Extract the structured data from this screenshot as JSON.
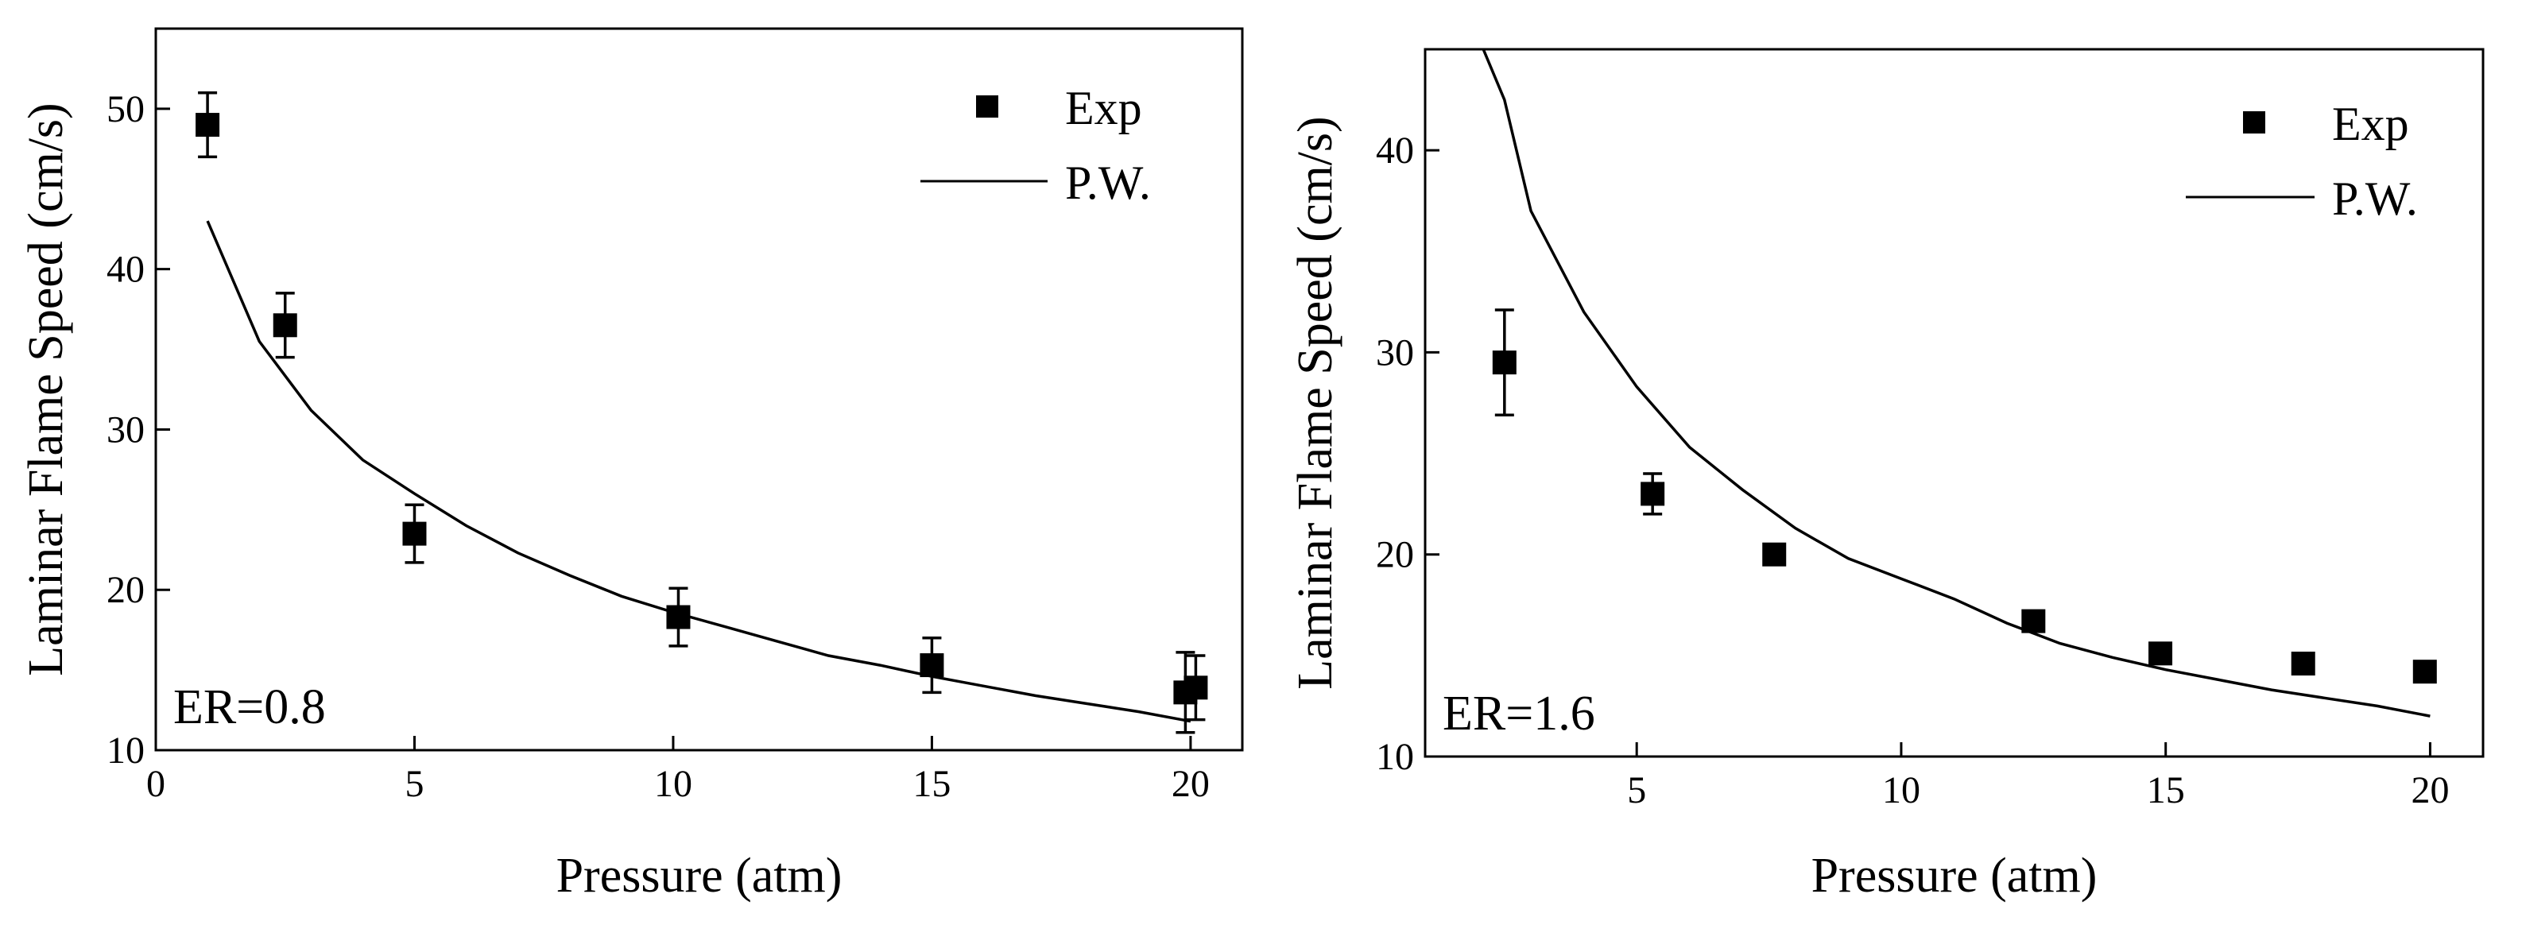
{
  "chart_data": [
    {
      "type": "scatter",
      "panel_label": "ER=0.8",
      "xlabel": "Pressure (atm)",
      "ylabel": "Laminar Flame Speed (cm/s)",
      "xlim": [
        0,
        21
      ],
      "ylim": [
        10,
        55
      ],
      "xticks": [
        0,
        5,
        10,
        15,
        20
      ],
      "yticks": [
        10,
        20,
        30,
        40,
        50
      ],
      "legend": {
        "position": "top-right",
        "entries": [
          "Exp",
          "P.W."
        ]
      },
      "series": [
        {
          "name": "Exp",
          "kind": "markers",
          "points": [
            {
              "x": 1,
              "y": 49.0,
              "err": 2.0
            },
            {
              "x": 2.5,
              "y": 36.5,
              "err": 2.0
            },
            {
              "x": 5,
              "y": 23.5,
              "err": 1.8
            },
            {
              "x": 10.1,
              "y": 18.3,
              "err": 1.8
            },
            {
              "x": 15,
              "y": 15.3,
              "err": 1.7
            },
            {
              "x": 19.9,
              "y": 13.6,
              "err": 2.5
            },
            {
              "x": 20.1,
              "y": 13.9,
              "err": 2.0
            }
          ]
        },
        {
          "name": "P.W.",
          "kind": "line",
          "points": [
            {
              "x": 1,
              "y": 43.0
            },
            {
              "x": 2,
              "y": 35.5
            },
            {
              "x": 3,
              "y": 31.2
            },
            {
              "x": 4,
              "y": 28.1
            },
            {
              "x": 5,
              "y": 26.0
            },
            {
              "x": 6,
              "y": 24.0
            },
            {
              "x": 7,
              "y": 22.3
            },
            {
              "x": 8,
              "y": 20.9
            },
            {
              "x": 9,
              "y": 19.6
            },
            {
              "x": 10,
              "y": 18.6
            },
            {
              "x": 11,
              "y": 17.7
            },
            {
              "x": 12,
              "y": 16.8
            },
            {
              "x": 13,
              "y": 15.9
            },
            {
              "x": 14,
              "y": 15.3
            },
            {
              "x": 15,
              "y": 14.6
            },
            {
              "x": 16,
              "y": 14.0
            },
            {
              "x": 17,
              "y": 13.4
            },
            {
              "x": 18,
              "y": 12.9
            },
            {
              "x": 19,
              "y": 12.4
            },
            {
              "x": 20,
              "y": 11.8
            }
          ]
        }
      ]
    },
    {
      "type": "scatter",
      "panel_label": "ER=1.6",
      "xlabel": "Pressure (atm)",
      "ylabel": "Laminar Flame Speed (cm/s)",
      "xlim": [
        1,
        21
      ],
      "ylim": [
        10,
        45
      ],
      "xticks": [
        5,
        10,
        15,
        20
      ],
      "yticks": [
        10,
        20,
        30,
        40
      ],
      "legend": {
        "position": "top-right",
        "entries": [
          "Exp",
          "P.W."
        ]
      },
      "series": [
        {
          "name": "Exp",
          "kind": "markers",
          "points": [
            {
              "x": 2.5,
              "y": 29.5,
              "err": 2.6
            },
            {
              "x": 5.3,
              "y": 23.0,
              "err": 1.0
            },
            {
              "x": 7.6,
              "y": 20.0,
              "err": 0.5
            },
            {
              "x": 12.5,
              "y": 16.7,
              "err": 0.3
            },
            {
              "x": 14.9,
              "y": 15.1,
              "err": 0.2
            },
            {
              "x": 17.6,
              "y": 14.6,
              "err": 0.2
            },
            {
              "x": 19.9,
              "y": 14.2,
              "err": 0.2
            }
          ]
        },
        {
          "name": "P.W.",
          "kind": "line",
          "points": [
            {
              "x": 2.1,
              "y": 45.0
            },
            {
              "x": 2.5,
              "y": 42.5
            },
            {
              "x": 3,
              "y": 37.0
            },
            {
              "x": 4,
              "y": 32.0
            },
            {
              "x": 5,
              "y": 28.3
            },
            {
              "x": 6,
              "y": 25.3
            },
            {
              "x": 7,
              "y": 23.2
            },
            {
              "x": 8,
              "y": 21.3
            },
            {
              "x": 9,
              "y": 19.8
            },
            {
              "x": 10,
              "y": 18.8
            },
            {
              "x": 11,
              "y": 17.8
            },
            {
              "x": 12,
              "y": 16.6
            },
            {
              "x": 13,
              "y": 15.6
            },
            {
              "x": 14,
              "y": 14.9
            },
            {
              "x": 15,
              "y": 14.3
            },
            {
              "x": 16,
              "y": 13.8
            },
            {
              "x": 17,
              "y": 13.3
            },
            {
              "x": 18,
              "y": 12.9
            },
            {
              "x": 19,
              "y": 12.5
            },
            {
              "x": 20,
              "y": 12.0
            }
          ]
        }
      ]
    }
  ]
}
